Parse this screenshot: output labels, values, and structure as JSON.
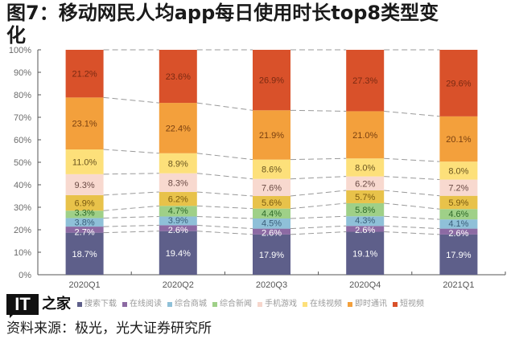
{
  "title": "图7：移动网民人均app每日使用时长top8类型变化",
  "source": "资料来源：极光，光大证券研究所",
  "logo": {
    "mark": "IT",
    "text": "之家"
  },
  "legend": [
    {
      "label": "搜索下载",
      "color": "#5e5f8a"
    },
    {
      "label": "在线阅读",
      "color": "#8c6aa3"
    },
    {
      "label": "综合商城",
      "color": "#8fc0d8"
    },
    {
      "label": "综合新闻",
      "color": "#9fd088"
    },
    {
      "label": "手机游戏",
      "color": "#f6d6cc"
    },
    {
      "label": "在线视频",
      "color": "#fde07a"
    },
    {
      "label": "即时通讯",
      "color": "#f3a03c"
    },
    {
      "label": "短视频",
      "color": "#d9512a"
    }
  ],
  "chart_data": {
    "type": "bar",
    "stacked": true,
    "title": "移动网民人均app每日使用时长top8类型变化",
    "xlabel": "",
    "ylabel": "",
    "ylim": [
      0,
      100
    ],
    "yticks": [
      "0%",
      "10%",
      "20%",
      "30%",
      "40%",
      "50%",
      "60%",
      "70%",
      "80%",
      "90%",
      "100%"
    ],
    "categories": [
      "2020Q1",
      "2020Q2",
      "2020Q3",
      "2020Q4",
      "2021Q1"
    ],
    "series": [
      {
        "name": "segment-1",
        "color": "#5e5f8a",
        "label_color": "#ffffff",
        "values": [
          18.7,
          19.4,
          17.9,
          19.1,
          17.9
        ]
      },
      {
        "name": "segment-2",
        "color": "#8c6aa3",
        "label_color": "#ffffff",
        "values": [
          2.7,
          2.6,
          2.6,
          2.6,
          2.6
        ]
      },
      {
        "name": "segment-3",
        "color": "#8fc0d8",
        "label_color": "#3b5f7a",
        "values": [
          3.8,
          3.9,
          4.5,
          4.3,
          4.1
        ]
      },
      {
        "name": "segment-4",
        "color": "#9fd088",
        "label_color": "#2f6a2a",
        "values": [
          3.3,
          4.7,
          4.4,
          5.8,
          4.6
        ]
      },
      {
        "name": "segment-5",
        "color": "#e8c24a",
        "label_color": "#7a5a10",
        "values": [
          6.9,
          6.2,
          5.6,
          5.7,
          5.9
        ]
      },
      {
        "name": "segment-6",
        "color": "#f8d9cf",
        "label_color": "#6a4a44",
        "values": [
          9.3,
          8.3,
          7.6,
          6.2,
          7.2
        ]
      },
      {
        "name": "segment-7",
        "color": "#fde07a",
        "label_color": "#6a5520",
        "values": [
          11.0,
          8.9,
          8.6,
          8.0,
          8.0
        ]
      },
      {
        "name": "segment-8",
        "color": "#f3a03c",
        "label_color": "#7a4010",
        "values": [
          23.1,
          22.4,
          21.9,
          21.0,
          20.1
        ]
      },
      {
        "name": "segment-9",
        "color": "#d9512a",
        "label_color": "#7a2a12",
        "values": [
          21.2,
          23.6,
          26.9,
          27.3,
          29.6
        ]
      }
    ],
    "value_format": "{v}%",
    "connector_lines": "dashed",
    "grid": false,
    "legend_position": "bottom"
  }
}
